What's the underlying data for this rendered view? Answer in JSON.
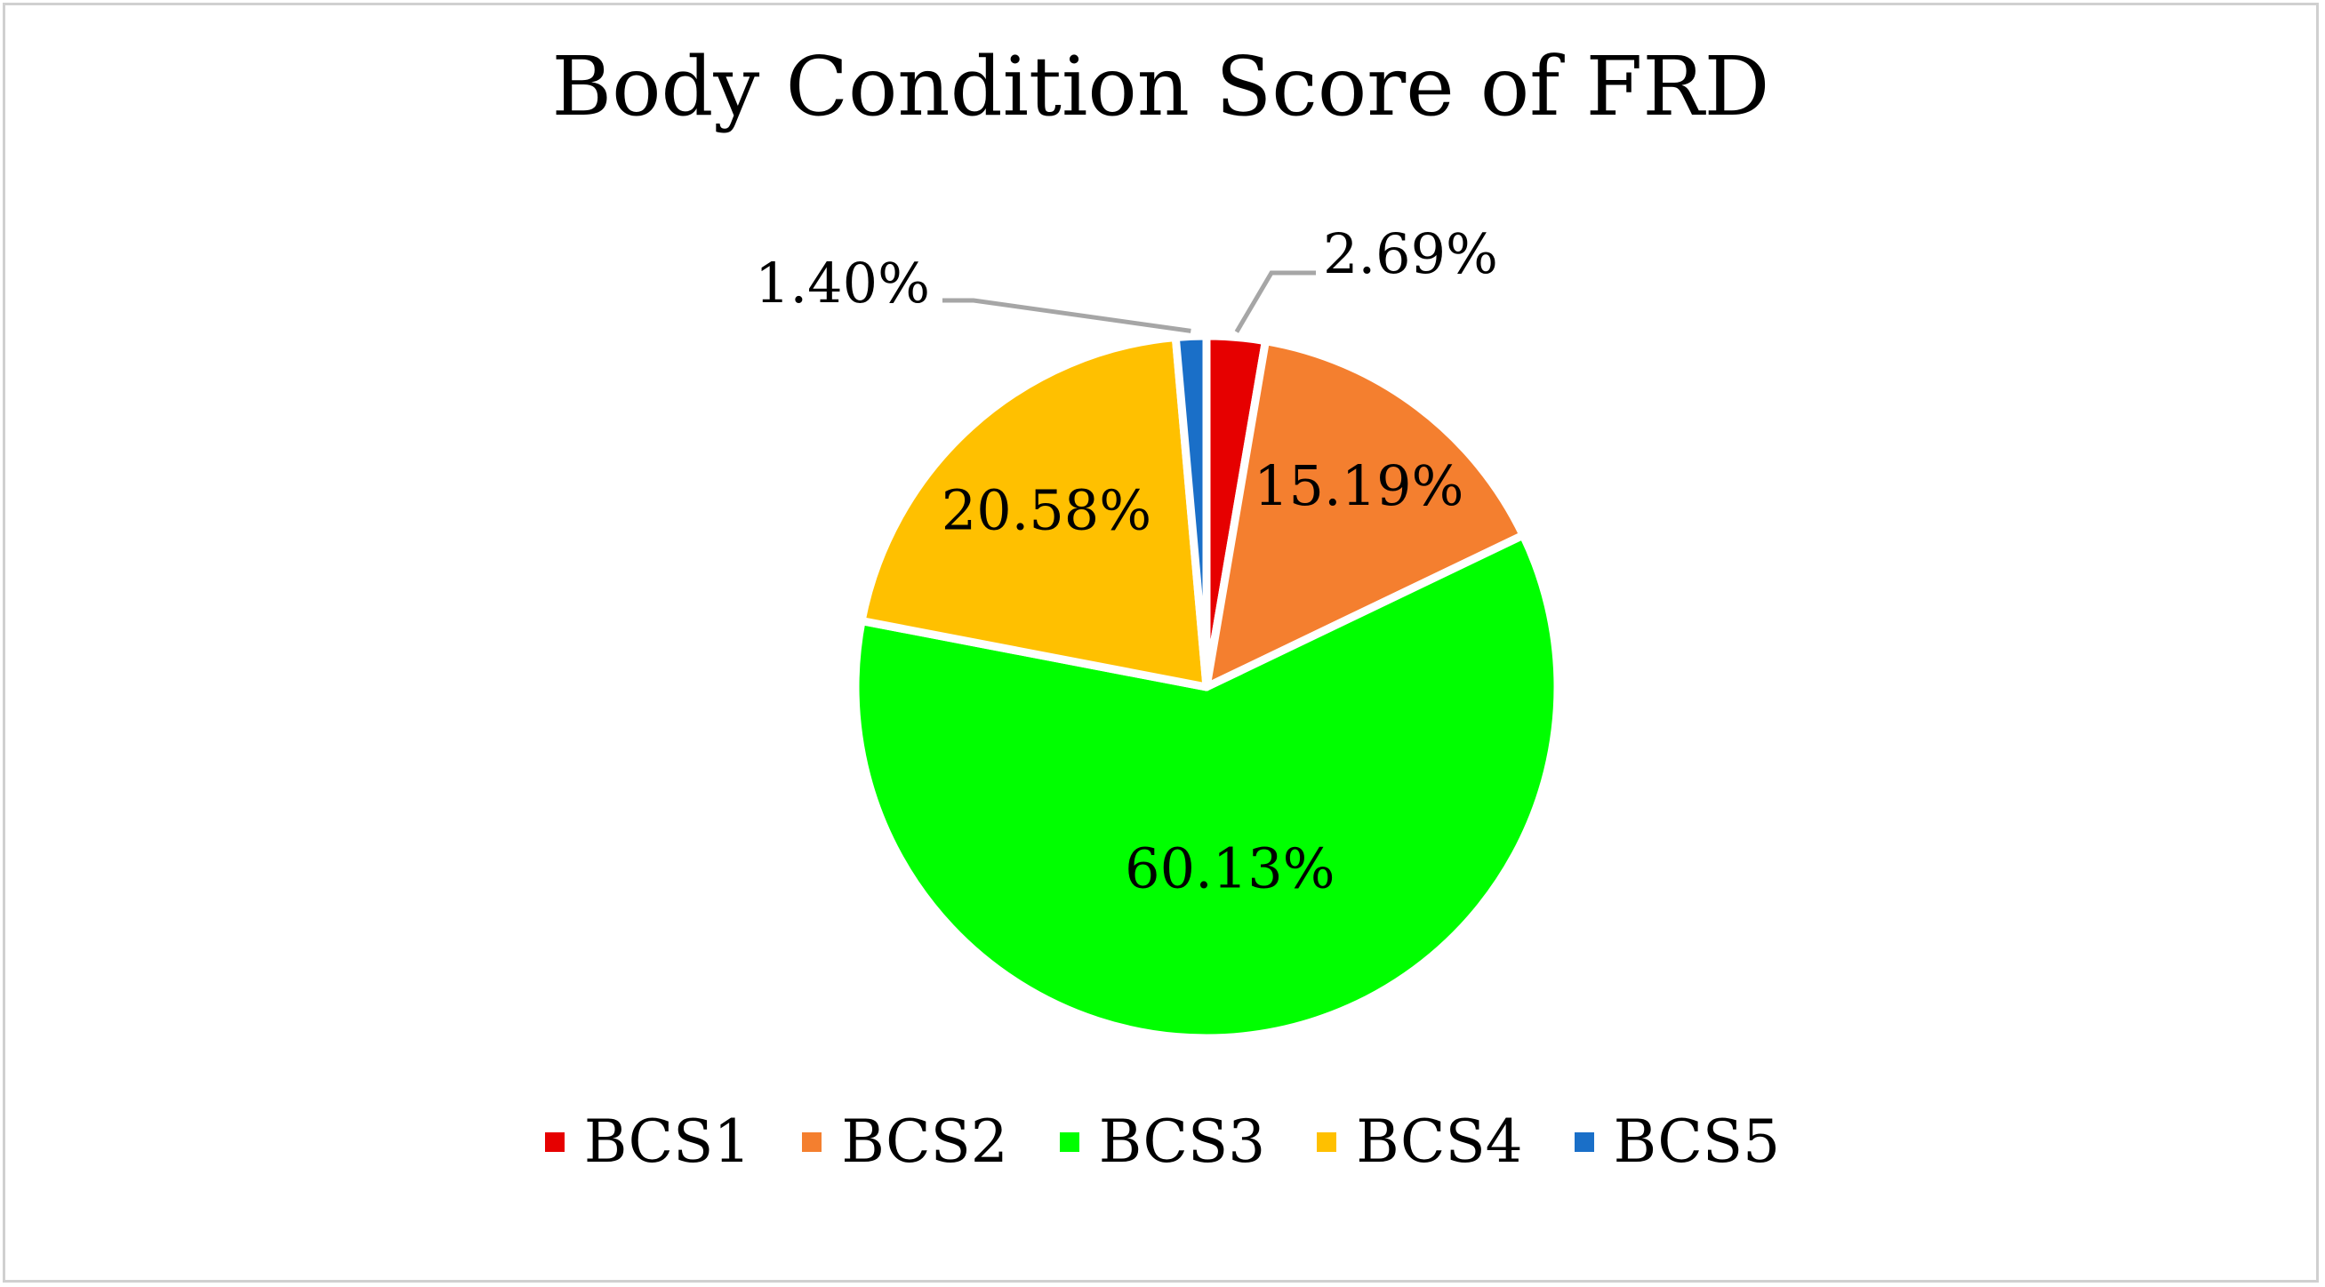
{
  "chart_data": {
    "type": "pie",
    "title": "Body Condition Score of FRD",
    "legend_position": "bottom",
    "categories": [
      "BCS1",
      "BCS2",
      "BCS3",
      "BCS4",
      "BCS5"
    ],
    "values": [
      2.69,
      15.19,
      60.13,
      20.58,
      1.4
    ],
    "data_labels": [
      "2.69%",
      "15.19%",
      "60.13%",
      "20.58%",
      "1.40%"
    ],
    "colors": [
      "#e60000",
      "#f47f2f",
      "#00ff00",
      "#ffc000",
      "#1a6fc8"
    ],
    "leader_line_color": "#a6a6a6"
  }
}
